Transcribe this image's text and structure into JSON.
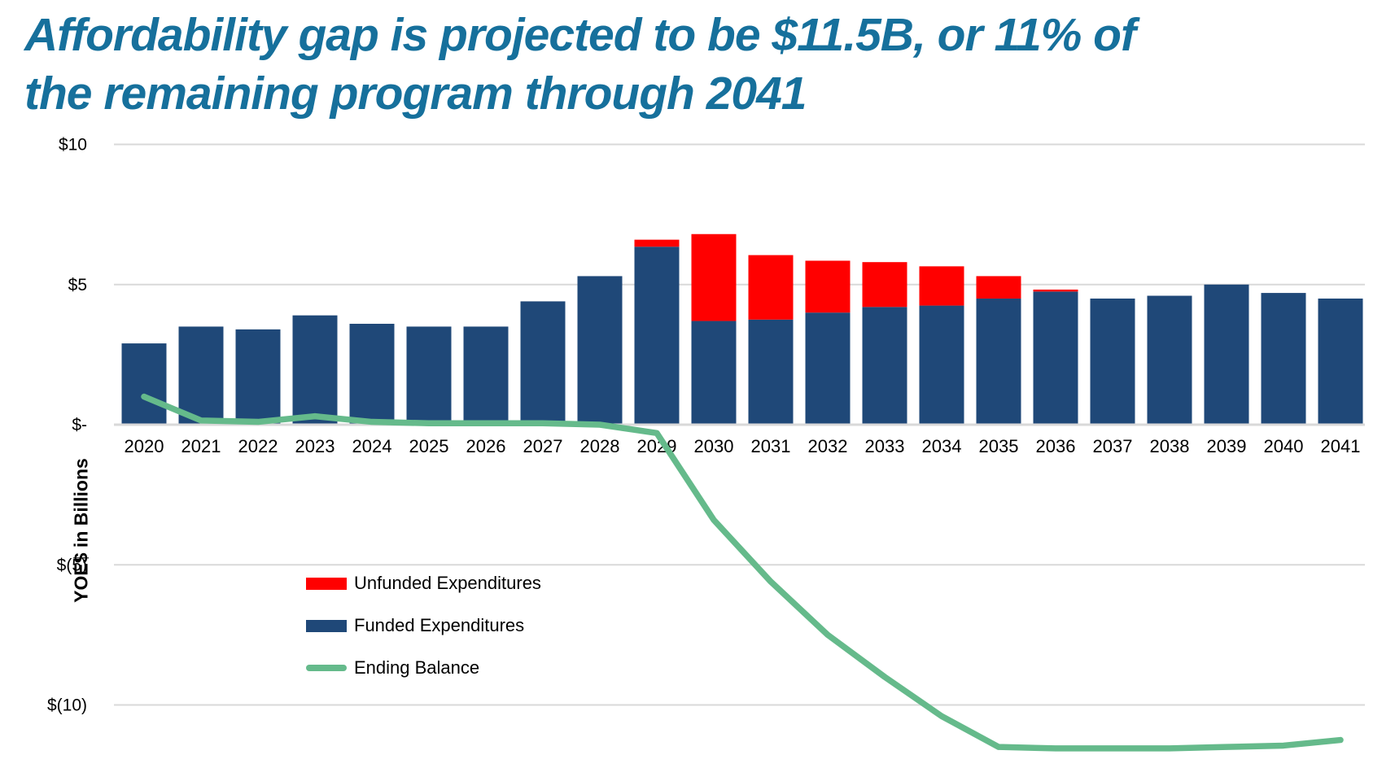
{
  "header": {
    "line1": "Affordability gap is projected to be $11.5B, or 11% of",
    "line2": "the remaining program through 2041",
    "color": "#16709C"
  },
  "legend": {
    "items": [
      {
        "label": "Unfunded Expenditures",
        "swatch": "rect",
        "color": "#FF0000"
      },
      {
        "label": "Funded Expenditures",
        "swatch": "rect",
        "color": "#1F4878"
      },
      {
        "label": "Ending Balance",
        "swatch": "line",
        "color": "#65BA8B"
      }
    ]
  },
  "chart_data": {
    "type": "bar",
    "subtype": "stacked-bars-with-line",
    "title": "Affordability gap is projected to be $11.5B, or 11% of the remaining program through 2041",
    "categories": [
      2020,
      2021,
      2022,
      2023,
      2024,
      2025,
      2026,
      2027,
      2028,
      2029,
      2030,
      2031,
      2032,
      2033,
      2034,
      2035,
      2036,
      2037,
      2038,
      2039,
      2040,
      2041
    ],
    "series": [
      {
        "name": "Funded Expenditures",
        "type": "bar",
        "stack": 0,
        "color": "#1F4878",
        "values": [
          2.9,
          3.5,
          3.4,
          3.9,
          3.6,
          3.5,
          3.5,
          4.4,
          5.3,
          6.35,
          3.7,
          3.75,
          4.0,
          4.2,
          4.25,
          4.5,
          4.75,
          4.5,
          4.6,
          5.0,
          4.7,
          4.5
        ]
      },
      {
        "name": "Unfunded Expenditures",
        "type": "bar",
        "stack": 1,
        "color": "#FF0000",
        "values": [
          0,
          0,
          0,
          0,
          0,
          0,
          0,
          0,
          0,
          0.25,
          3.1,
          2.3,
          1.85,
          1.6,
          1.4,
          0.8,
          0.07,
          0,
          0,
          0,
          0,
          0
        ]
      },
      {
        "name": "Ending Balance",
        "type": "line",
        "color": "#65BA8B",
        "values": [
          1.0,
          0.15,
          0.1,
          0.3,
          0.1,
          0.05,
          0.05,
          0.05,
          0.0,
          -0.3,
          -3.4,
          -5.6,
          -7.5,
          -9.0,
          -10.4,
          -11.5,
          -11.55,
          -11.55,
          -11.55,
          -11.5,
          -11.45,
          -11.25
        ]
      }
    ],
    "xlabel": "",
    "ylabel": "YOE$ in Billions",
    "yticks": [
      {
        "value": 10,
        "label": "$10"
      },
      {
        "value": 5,
        "label": "$5"
      },
      {
        "value": 0,
        "label": "$-"
      },
      {
        "value": -5,
        "label": "$(5)"
      },
      {
        "value": -10,
        "label": "$(10)"
      }
    ],
    "ylim": [
      -12.5,
      10
    ],
    "grid": true,
    "gridline_color": "#D9D9D9",
    "axis_text_color": "#000000",
    "legend_position": "inside-bottom-left"
  }
}
